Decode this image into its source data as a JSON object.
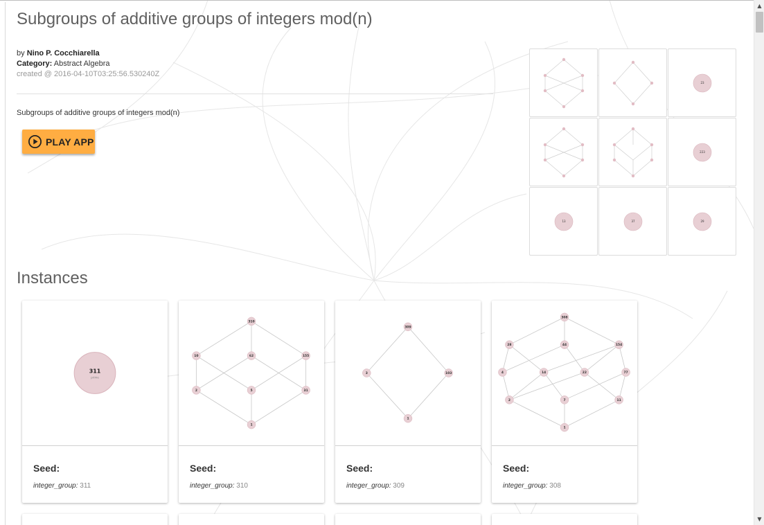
{
  "app": {
    "title": "Subgroups of additive groups of integers mod(n)",
    "author_prefix": "by",
    "author": "Nino P. Cocchiarella",
    "category_label": "Category:",
    "category": "Abstract Algebra",
    "created": "created @ 2016-04-10T03:25:56.530240Z",
    "description": "Subgroups of additive groups of integers mod(n)",
    "play_button": "PLAY APP"
  },
  "thumbnails": [
    {
      "kind": "graph"
    },
    {
      "kind": "graph"
    },
    {
      "kind": "single",
      "label": "23"
    },
    {
      "kind": "graph"
    },
    {
      "kind": "graph"
    },
    {
      "kind": "single",
      "label": "223"
    },
    {
      "kind": "single",
      "label": "13"
    },
    {
      "kind": "single",
      "label": "37"
    },
    {
      "kind": "single",
      "label": "29"
    }
  ],
  "instances": {
    "section_title": "Instances",
    "seed_label": "Seed:",
    "param_name": "integer_group:",
    "cards": [
      {
        "value": "311",
        "node_labels": [
          "311",
          "prime"
        ]
      },
      {
        "value": "310",
        "node_labels": [
          "310",
          "10",
          "62",
          "155",
          "2",
          "5",
          "31",
          "1"
        ]
      },
      {
        "value": "309",
        "node_labels": [
          "309",
          "3",
          "103",
          "1"
        ]
      },
      {
        "value": "308",
        "node_labels": [
          "308",
          "28",
          "44",
          "154",
          "4",
          "14",
          "22",
          "77",
          "2",
          "7",
          "11",
          "1"
        ]
      }
    ]
  },
  "colors": {
    "node_fill": "#e8cfd4",
    "node_stroke": "#d9b3bb",
    "edge": "#c8c8c8",
    "accent": "#ffad42"
  }
}
